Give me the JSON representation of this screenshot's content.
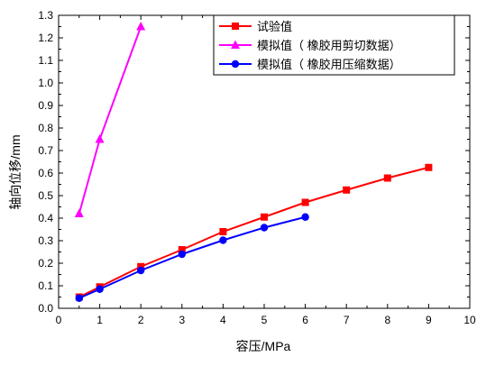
{
  "chart_data": {
    "type": "line",
    "xlabel": "容压/MPa",
    "ylabel": "轴向位移/mm",
    "xlim": [
      0,
      10
    ],
    "ylim": [
      0,
      1.3
    ],
    "xticks": [
      "0",
      "1",
      "2",
      "3",
      "4",
      "5",
      "6",
      "7",
      "8",
      "9",
      "10"
    ],
    "yticks": [
      "0.0",
      "0.1",
      "0.2",
      "0.3",
      "0.4",
      "0.5",
      "0.6",
      "0.7",
      "0.8",
      "0.9",
      "1.0",
      "1.1",
      "1.2",
      "1.3"
    ],
    "grid": false,
    "legend_position": "top-right",
    "series": [
      {
        "name": "试验值",
        "color": "#ff0000",
        "marker": "square",
        "x": [
          0.5,
          1,
          2,
          3,
          4,
          5,
          6,
          7,
          8,
          9
        ],
        "y": [
          0.05,
          0.095,
          0.185,
          0.26,
          0.34,
          0.405,
          0.47,
          0.525,
          0.578,
          0.625
        ]
      },
      {
        "name": "模拟值（ 橡胶用剪切数据）",
        "color": "#ff00ff",
        "marker": "triangle",
        "x": [
          0.5,
          1,
          2
        ],
        "y": [
          0.42,
          0.75,
          1.25
        ]
      },
      {
        "name": "模拟值（ 橡胶用压缩数据）",
        "color": "#0000ff",
        "marker": "circle",
        "x": [
          0.5,
          1,
          2,
          3,
          4,
          5,
          6
        ],
        "y": [
          0.045,
          0.085,
          0.168,
          0.24,
          0.302,
          0.358,
          0.405
        ]
      }
    ]
  }
}
